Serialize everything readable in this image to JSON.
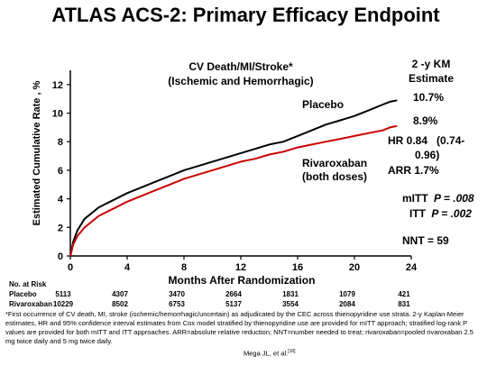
{
  "slide": {
    "title": "ATLAS ACS-2: Primary Efficacy Endpoint",
    "footnote": "*First occurrence of CV death, MI, stroke (ischemic/hemorrhagic/uncertain) as adjudicated by the CEC across thienopyridine use strata. 2-y Kaplan-Meier estimates, HR and 95% confidence interval estimates from Cox model stratified by thienopyridine use are provided for mITT approach; stratified log-rank P values are provided for both mITT and ITT approaches. ARR=absolute relative reduction; NNT=number needed to treat; rivaroxaban=pooled rivaroxaban 2.5 mg twice daily and 5 mg twice daily.",
    "citation": "Mega JL, et al.",
    "citation_ref": "[16]"
  },
  "chart_data": {
    "type": "line",
    "subtitle_line1": "CV Death/MI/Stroke*",
    "subtitle_line2": "(Ischemic and Hemorrhagic)",
    "xlabel": "Months After Randomization",
    "ylabel": "Estimated Cumulative Rate , %",
    "xlim": [
      0,
      24
    ],
    "ylim": [
      0,
      13
    ],
    "xticks": [
      0,
      4,
      8,
      12,
      16,
      20,
      24
    ],
    "yticks": [
      0,
      2,
      4,
      6,
      8,
      10,
      12
    ],
    "grid": false,
    "series": [
      {
        "name": "Placebo",
        "color": "#000000",
        "x": [
          0,
          0.2,
          0.5,
          1,
          1.5,
          2,
          3,
          4,
          5,
          6,
          7,
          8,
          9,
          10,
          11,
          12,
          13,
          14,
          15,
          16,
          17,
          18,
          19,
          20,
          21,
          22,
          22.5,
          23
        ],
        "y": [
          0,
          1.0,
          1.8,
          2.6,
          3.0,
          3.4,
          3.9,
          4.4,
          4.8,
          5.2,
          5.6,
          6.0,
          6.3,
          6.6,
          6.9,
          7.2,
          7.5,
          7.8,
          8.0,
          8.4,
          8.8,
          9.2,
          9.5,
          9.8,
          10.2,
          10.6,
          10.8,
          10.9
        ]
      },
      {
        "name": "Rivaroxaban (both doses)",
        "label_line1": "Rivaroxaban",
        "label_line2": "(both doses)",
        "color": "#cc0000",
        "x": [
          0,
          0.2,
          0.5,
          1,
          1.5,
          2,
          3,
          4,
          5,
          6,
          7,
          8,
          9,
          10,
          11,
          12,
          13,
          14,
          15,
          16,
          17,
          18,
          19,
          20,
          21,
          22,
          22.5,
          23
        ],
        "y": [
          0,
          0.8,
          1.4,
          2.0,
          2.4,
          2.8,
          3.3,
          3.8,
          4.2,
          4.6,
          5.0,
          5.4,
          5.7,
          6.0,
          6.3,
          6.6,
          6.8,
          7.1,
          7.3,
          7.6,
          7.8,
          8.0,
          8.2,
          8.4,
          8.6,
          8.8,
          9.0,
          9.1
        ]
      }
    ],
    "km_header_line1": "2 -y KM",
    "km_header_line2": "Estimate",
    "placebo_estimate": "10.7%",
    "rivaroxaban_estimate": "8.9%",
    "hr_line1": "HR 0.84   (0.74-",
    "hr_line2": "0.96)",
    "arr": "ARR 1.7%",
    "mitt_label": "mITT",
    "mitt_p": "P = .008",
    "itt_label": "ITT",
    "itt_p": "P = .002",
    "nnt": "NNT = 59",
    "risk_table": {
      "header": "No. at Risk",
      "rows": [
        {
          "label": "Placebo",
          "values": [
            "5113",
            "4307",
            "3470",
            "2664",
            "1831",
            "1079",
            "421"
          ]
        },
        {
          "label": "Rivaroxaban",
          "values": [
            "10229",
            "8502",
            "6753",
            "5137",
            "3554",
            "2084",
            "831"
          ]
        }
      ]
    }
  }
}
